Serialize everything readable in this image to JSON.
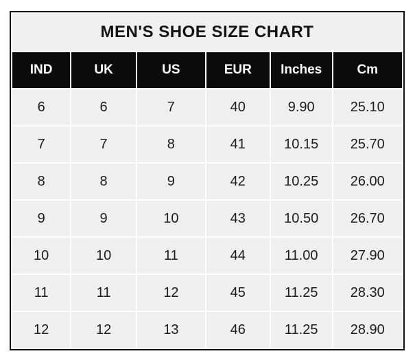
{
  "chart_data": {
    "type": "table",
    "title": "MEN'S SHOE SIZE CHART",
    "columns": [
      "IND",
      "UK",
      "US",
      "EUR",
      "Inches",
      "Cm"
    ],
    "rows": [
      [
        "6",
        "6",
        "7",
        "40",
        "9.90",
        "25.10"
      ],
      [
        "7",
        "7",
        "8",
        "41",
        "10.15",
        "25.70"
      ],
      [
        "8",
        "8",
        "9",
        "42",
        "10.25",
        "26.00"
      ],
      [
        "9",
        "9",
        "10",
        "43",
        "10.50",
        "26.70"
      ],
      [
        "10",
        "10",
        "11",
        "44",
        "11.00",
        "27.90"
      ],
      [
        "11",
        "11",
        "12",
        "45",
        "11.25",
        "28.30"
      ],
      [
        "12",
        "12",
        "13",
        "46",
        "11.25",
        "28.90"
      ]
    ],
    "column_widths_pct": [
      15.1,
      16.8,
      17.7,
      16.5,
      15.9,
      18.0
    ],
    "colors": {
      "page_bg": "#ffffff",
      "title_bg": "#f0f0f0",
      "header_bg": "#0b0b0b",
      "header_text": "#ffffff",
      "cell_bg": "#efefef",
      "cell_text": "#1c1c1c",
      "grid_gap": "#ffffff",
      "outer_border": "#111111"
    }
  }
}
